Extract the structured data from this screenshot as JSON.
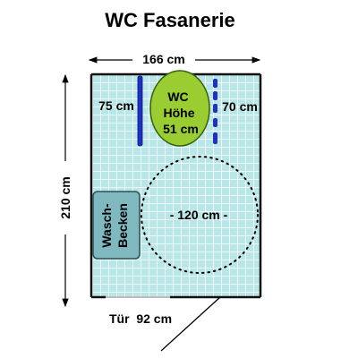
{
  "title": "WC Fasanerie",
  "dimensions": {
    "width_label": "166 cm",
    "height_label": "210 cm",
    "door_label": "Tür  92 cm"
  },
  "room": {
    "wall_gap_left_label": "75 cm",
    "wall_gap_right_label": "70 cm",
    "turning_circle_label": "- 120 cm -"
  },
  "toilet": {
    "line1": "WC",
    "line2": "Höhe",
    "line3": "51 cm"
  },
  "sink": {
    "line1": "Wasch-",
    "line2": "Becken"
  },
  "colors": {
    "floor_tile": "#b9e6e6",
    "tile_grid": "#ffffff",
    "wall": "#111111",
    "toilet_fill": "#9acd32",
    "toilet_stroke": "#3a5f0b",
    "sink_fill": "#7fb8bf",
    "sink_stroke": "#2f4f55",
    "grab_bar": "#2030c0"
  }
}
